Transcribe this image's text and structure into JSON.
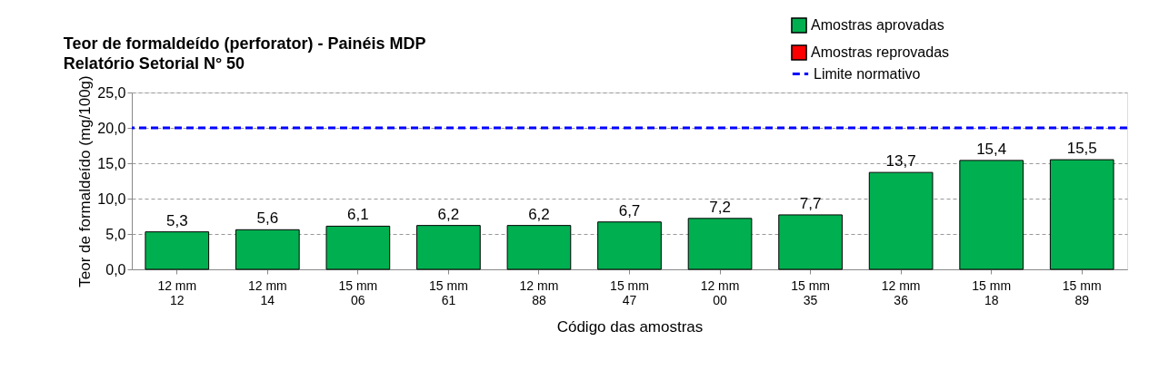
{
  "chart_data": {
    "type": "bar",
    "title": "Teor de formaldeído (perforator) - Painéis MDP",
    "subtitle": "Relatório Setorial N° 50",
    "xlabel": "Código das amostras",
    "ylabel": "Teor de formaldeído (mg/100g)",
    "categories": [
      "12 mm\n12",
      "12 mm\n14",
      "15 mm\n06",
      "15 mm\n61",
      "12 mm\n88",
      "15 mm\n47",
      "12 mm\n00",
      "15 mm\n35",
      "12 mm\n36",
      "15 mm\n18",
      "15 mm\n89"
    ],
    "series": [
      {
        "name": "Amostras aprovadas",
        "color": "#00b050",
        "values": [
          5.3,
          5.6,
          6.1,
          6.2,
          6.2,
          6.7,
          7.2,
          7.7,
          13.7,
          15.4,
          15.5
        ]
      },
      {
        "name": "Amostras reprovadas",
        "color": "#ff0000",
        "values": [
          null,
          null,
          null,
          null,
          null,
          null,
          null,
          null,
          null,
          null,
          null
        ]
      }
    ],
    "ylim": [
      0,
      25
    ],
    "yticks": [
      {
        "value": 0,
        "label": "0,0"
      },
      {
        "value": 5,
        "label": "5,0"
      },
      {
        "value": 10,
        "label": "10,0"
      },
      {
        "value": 15,
        "label": "15,0"
      },
      {
        "value": 20,
        "label": "20,0"
      },
      {
        "value": 25,
        "label": "25,0"
      }
    ],
    "ref_lines": [
      {
        "axis": "y",
        "value": 20,
        "label": "Limite normativo",
        "color": "#0000ff",
        "line_style": "dashed"
      }
    ],
    "value_labels": [
      "5,3",
      "5,6",
      "6,1",
      "6,2",
      "6,2",
      "6,7",
      "7,2",
      "7,7",
      "13,7",
      "15,4",
      "15,5"
    ],
    "grid": "y",
    "legend": "top right"
  }
}
